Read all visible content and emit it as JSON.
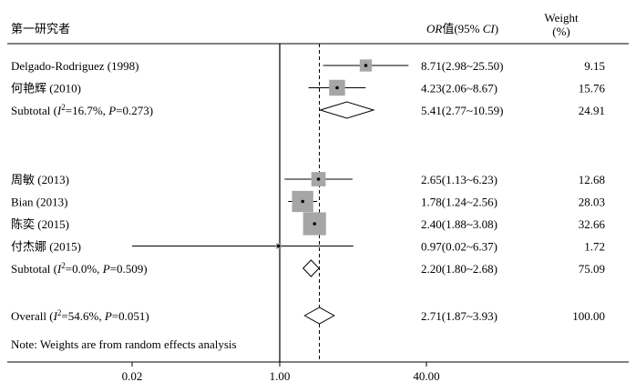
{
  "chart_data": {
    "type": "forest",
    "header": {
      "study": "第一研究者",
      "or_em": "OR",
      "or_mid": "值(95% ",
      "or_ci": "CI",
      "or_close": ")",
      "weight_line1": "Weight",
      "weight_line2": "(%)"
    },
    "x_axis": {
      "scale": "log",
      "ticks": [
        0.02,
        1.0,
        40.0
      ],
      "tick_labels": [
        "0.02",
        "1.00",
        "40.00"
      ],
      "null_value": 1.0,
      "overall_reference": 2.71
    },
    "groups": [
      {
        "studies": [
          {
            "name": "Delgado-Rodriguez (1998)",
            "or": 8.71,
            "lo": 2.98,
            "hi": 25.5,
            "or_text": "8.71(2.98~25.50)",
            "weight": "9.15"
          },
          {
            "name": "何艳辉 (2010)",
            "or": 4.23,
            "lo": 2.06,
            "hi": 8.67,
            "or_text": "4.23(2.06~8.67)",
            "weight": "15.76"
          }
        ],
        "subtotal": {
          "prefix": "Subtotal (",
          "i2_label": "I",
          "i2_sup": "2",
          "rest": "=16.7%, ",
          "p_label": "P",
          "p_rest": "=0.273)",
          "or": 5.41,
          "lo": 2.77,
          "hi": 10.59,
          "or_text": "5.41(2.77~10.59)",
          "weight": "24.91"
        }
      },
      {
        "studies": [
          {
            "name": "周敏 (2013)",
            "or": 2.65,
            "lo": 1.13,
            "hi": 6.23,
            "or_text": "2.65(1.13~6.23)",
            "weight": "12.68"
          },
          {
            "name": "Bian (2013)",
            "or": 1.78,
            "lo": 1.24,
            "hi": 2.56,
            "or_text": "1.78(1.24~2.56)",
            "weight": "28.03"
          },
          {
            "name": "陈奕 (2015)",
            "or": 2.4,
            "lo": 1.88,
            "hi": 3.08,
            "or_text": "2.40(1.88~3.08)",
            "weight": "32.66"
          },
          {
            "name": "付杰娜 (2015)",
            "or": 0.97,
            "lo": 0.02,
            "hi": 6.37,
            "or_text": "0.97(0.02~6.37)",
            "weight": "1.72"
          }
        ],
        "subtotal": {
          "prefix": "Subtotal (",
          "i2_label": "I",
          "i2_sup": "2",
          "rest": "=0.0%, ",
          "p_label": "P",
          "p_rest": "=0.509)",
          "or": 2.2,
          "lo": 1.8,
          "hi": 2.68,
          "or_text": "2.20(1.80~2.68)",
          "weight": "75.09"
        }
      }
    ],
    "overall": {
      "prefix": "Overall (",
      "i2_label": "I",
      "i2_sup": "2",
      "rest": "=54.6%, ",
      "p_label": "P",
      "p_rest": "=0.051)",
      "or": 2.71,
      "lo": 1.87,
      "hi": 3.93,
      "or_text": "2.71(1.87~3.93)",
      "weight": "100.00"
    },
    "note": "Note: Weights are from random effects analysis"
  }
}
